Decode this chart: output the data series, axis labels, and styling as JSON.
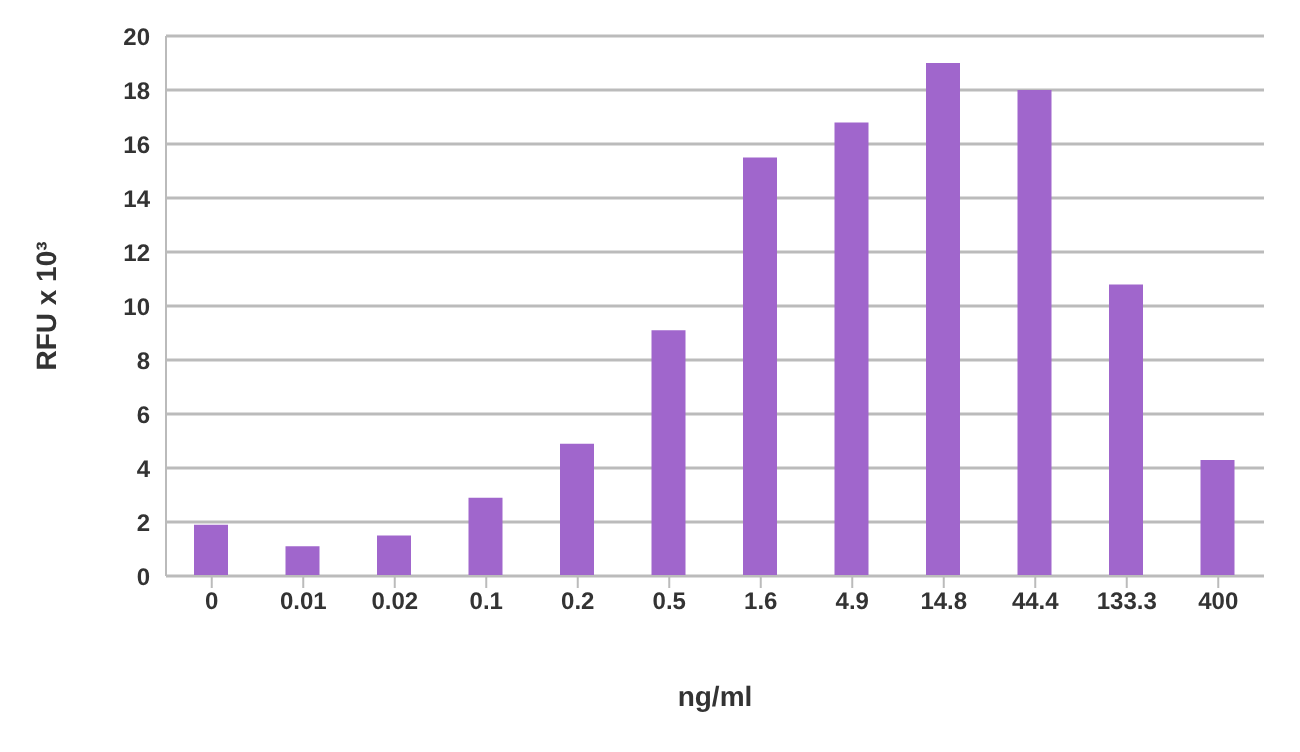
{
  "chart_data": {
    "type": "bar",
    "xlabel": "ng/ml",
    "ylabel": "RFU x 10³",
    "categories": [
      "0",
      "0.01",
      "0.02",
      "0.1",
      "0.2",
      "0.5",
      "1.6",
      "4.9",
      "14.8",
      "44.4",
      "133.3",
      "400"
    ],
    "values": [
      1.9,
      1.1,
      1.5,
      2.9,
      4.9,
      9.1,
      15.5,
      16.8,
      19,
      18,
      10.8,
      4.3
    ],
    "color": "#a066cc",
    "ylim": [
      0,
      20
    ],
    "yticks": [
      0,
      2,
      4,
      6,
      8,
      10,
      12,
      14,
      16,
      18,
      20
    ],
    "grid": "y"
  }
}
